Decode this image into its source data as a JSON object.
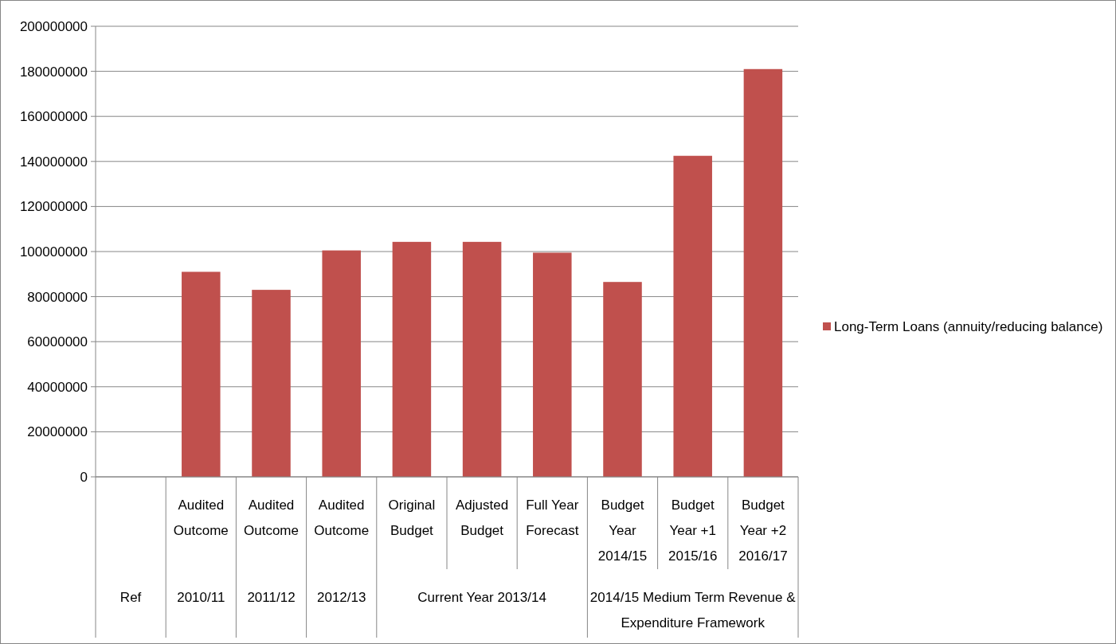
{
  "chart_data": {
    "type": "bar",
    "categories": [
      null,
      "Audited Outcome",
      "Audited Outcome",
      "Audited Outcome",
      "Original Budget",
      "Adjusted Budget",
      "Full Year Forecast",
      "Budget Year 2014/15",
      "Budget Year +1 2015/16",
      "Budget Year +2 2016/17"
    ],
    "series": [
      {
        "name": "Long-Term Loans (annuity/reducing balance)",
        "color": "#c0504d",
        "values": [
          null,
          91000000,
          83000000,
          100500000,
          104300000,
          104300000,
          99500000,
          86500000,
          142500000,
          181000000
        ]
      }
    ],
    "annotations": [
      "Ref",
      "2010/11",
      "2011/12",
      "2012/13",
      "Current Year 2013/14",
      "2014/15 Medium Term Revenue & Expenditure Framework"
    ],
    "ylim": [
      0,
      200000000
    ],
    "yticks": [
      0,
      20000000,
      40000000,
      60000000,
      80000000,
      100000000,
      120000000,
      140000000,
      160000000,
      180000000,
      200000000
    ],
    "grid": "y",
    "legend": "right"
  }
}
